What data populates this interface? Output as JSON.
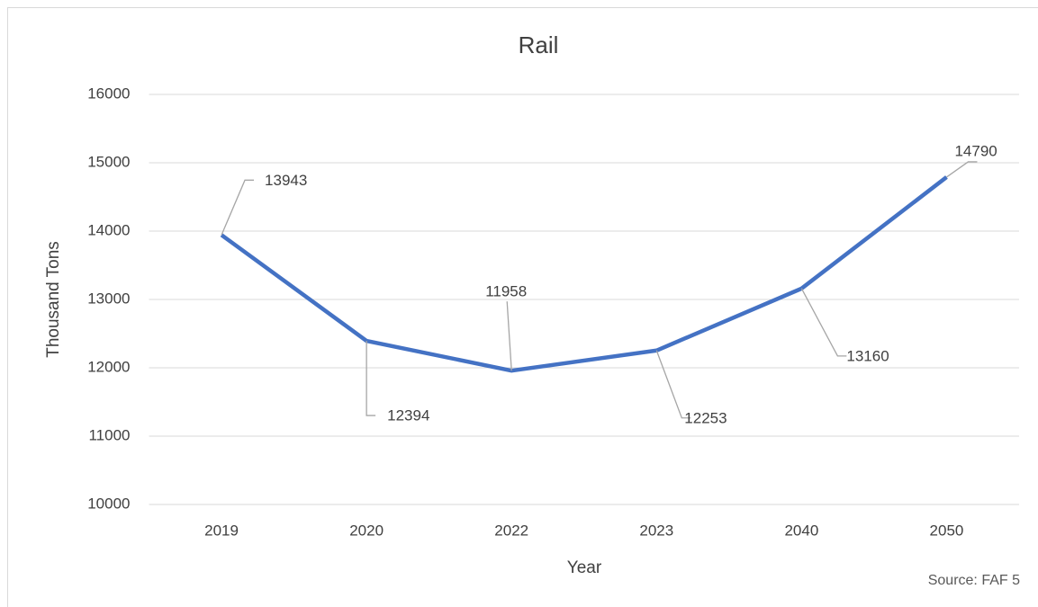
{
  "chart_data": {
    "type": "line",
    "title": "Rail",
    "x_label": "Year",
    "y_label": "Thousand Tons",
    "source": "Source: FAF 5",
    "categories": [
      "2019",
      "2020",
      "2022",
      "2023",
      "2040",
      "2050"
    ],
    "series": [
      {
        "name": "Rail",
        "color": "#4472c4",
        "values": [
          13943,
          12394,
          11958,
          12253,
          13160,
          14790
        ]
      }
    ],
    "ylim": [
      10000,
      16000
    ],
    "yticks": [
      10000,
      11000,
      12000,
      13000,
      14000,
      15000,
      16000
    ],
    "grid": true
  }
}
